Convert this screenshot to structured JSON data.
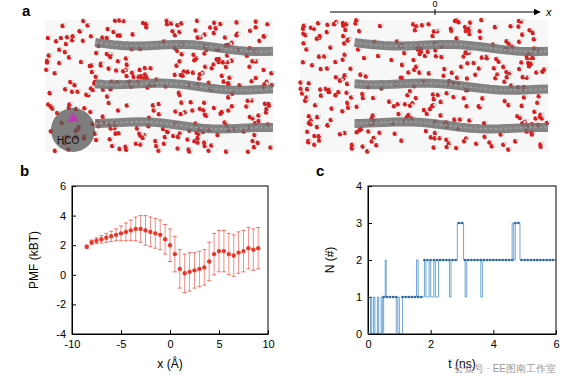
{
  "figure": {
    "panel_a": {
      "title": "a",
      "axis_origin": "0",
      "axis_label": "x",
      "molecule_label": "HCO"
    },
    "watermark": "公众号 · EE图南工作室"
  },
  "chart_data": [
    {
      "type": "scatter",
      "title": "b",
      "xlabel": "x (Å)",
      "ylabel": "PMF (kBT)",
      "x": [
        -8.5,
        -8,
        -7.5,
        -7,
        -6.5,
        -6,
        -5.5,
        -5,
        -4.5,
        -4,
        -3.5,
        -3,
        -2.5,
        -2,
        -1.5,
        -1,
        -0.5,
        0,
        0.5,
        1,
        1.5,
        2,
        2.5,
        3,
        3.5,
        4,
        4.5,
        5,
        5.5,
        6,
        6.5,
        7,
        7.5,
        8,
        8.5,
        9
      ],
      "series": [
        {
          "color": "#e8382a",
          "marker": "circle",
          "line_style": "none",
          "values": [
            1.9,
            2.2,
            2.3,
            2.4,
            2.5,
            2.6,
            2.7,
            2.8,
            2.9,
            3.0,
            3.1,
            3.1,
            3.0,
            2.9,
            2.8,
            2.7,
            2.4,
            2.0,
            1.4,
            0.4,
            0.1,
            0.2,
            0.3,
            0.4,
            0.5,
            0.9,
            1.4,
            1.6,
            1.6,
            1.4,
            1.3,
            1.5,
            1.6,
            1.8,
            1.7,
            1.8
          ],
          "errors": [
            0.1,
            0.15,
            0.2,
            0.25,
            0.3,
            0.35,
            0.4,
            0.5,
            0.6,
            0.7,
            0.8,
            0.9,
            1.0,
            1.0,
            1.0,
            1.0,
            1.0,
            1.1,
            1.2,
            1.3,
            1.3,
            1.3,
            1.2,
            1.2,
            1.2,
            1.3,
            1.4,
            1.4,
            1.4,
            1.4,
            1.4,
            1.4,
            1.4,
            1.4,
            1.4,
            1.4
          ]
        }
      ],
      "xlim": [
        -10,
        10
      ],
      "xticks": [
        -10,
        -5,
        0,
        5,
        10
      ],
      "ylim": [
        -4,
        6
      ],
      "yticks": [
        -4,
        -2,
        0,
        2,
        4,
        6
      ]
    },
    {
      "type": "line",
      "title": "c",
      "xlabel": "t (ns)",
      "ylabel": "N (#)",
      "series": [
        {
          "color": "#4a8fcc",
          "line_style": "step",
          "x": [
            0,
            0.08,
            0.12,
            0.18,
            0.22,
            0.3,
            0.34,
            0.42,
            0.46,
            0.5,
            0.55,
            0.58,
            0.9,
            0.95,
            1.0,
            1.1,
            1.55,
            1.6,
            1.8,
            1.85,
            1.95,
            2.0,
            2.1,
            2.15,
            2.25,
            2.6,
            2.65,
            2.85,
            3.05,
            3.1,
            3.15,
            3.6,
            3.65,
            4.6,
            4.65,
            4.7,
            4.85,
            6.0
          ],
          "values": [
            0,
            1,
            0,
            1,
            0,
            1,
            0,
            1,
            0,
            1,
            2,
            1,
            0,
            1,
            0,
            1,
            2,
            1,
            2,
            1,
            2,
            1,
            2,
            1,
            2,
            1,
            2,
            3,
            2,
            1,
            2,
            1,
            2,
            3,
            2,
            3,
            2,
            2
          ]
        },
        {
          "color": "#2a64a0",
          "marker": "dot",
          "line_style": "none",
          "x": [
            0,
            0.1,
            0.2,
            0.3,
            0.4,
            0.5,
            0.6,
            0.7,
            0.8,
            0.9,
            1.0,
            1.1,
            1.2,
            1.3,
            1.4,
            1.5,
            1.6,
            1.7,
            1.8,
            1.9,
            2.0,
            2.1,
            2.2,
            2.3,
            2.4,
            2.5,
            2.6,
            2.7,
            2.8,
            2.9,
            3.0,
            3.1,
            3.2,
            3.3,
            3.4,
            3.5,
            3.6,
            3.7,
            3.8,
            3.9,
            4.0,
            4.1,
            4.2,
            4.3,
            4.4,
            4.5,
            4.6,
            4.7,
            4.8,
            4.9,
            5.0,
            5.1,
            5.2,
            5.3,
            5.4,
            5.5,
            5.6,
            5.7,
            5.8,
            5.9,
            6.0
          ],
          "values": [
            0,
            0,
            0,
            0,
            0,
            1,
            1,
            1,
            1,
            1,
            0,
            1,
            1,
            1,
            1,
            1,
            1,
            1,
            2,
            2,
            2,
            2,
            2,
            2,
            2,
            2,
            2,
            2,
            2,
            3,
            3,
            2,
            2,
            2,
            2,
            2,
            2,
            2,
            2,
            2,
            2,
            2,
            2,
            2,
            2,
            2,
            2,
            3,
            3,
            2,
            2,
            2,
            2,
            2,
            2,
            2,
            2,
            2,
            2,
            2,
            2
          ]
        }
      ],
      "xlim": [
        0,
        6
      ],
      "xticks": [
        0,
        2,
        4,
        6
      ],
      "ylim": [
        0,
        4
      ],
      "yticks": [
        0,
        1,
        2,
        3,
        4
      ]
    }
  ]
}
